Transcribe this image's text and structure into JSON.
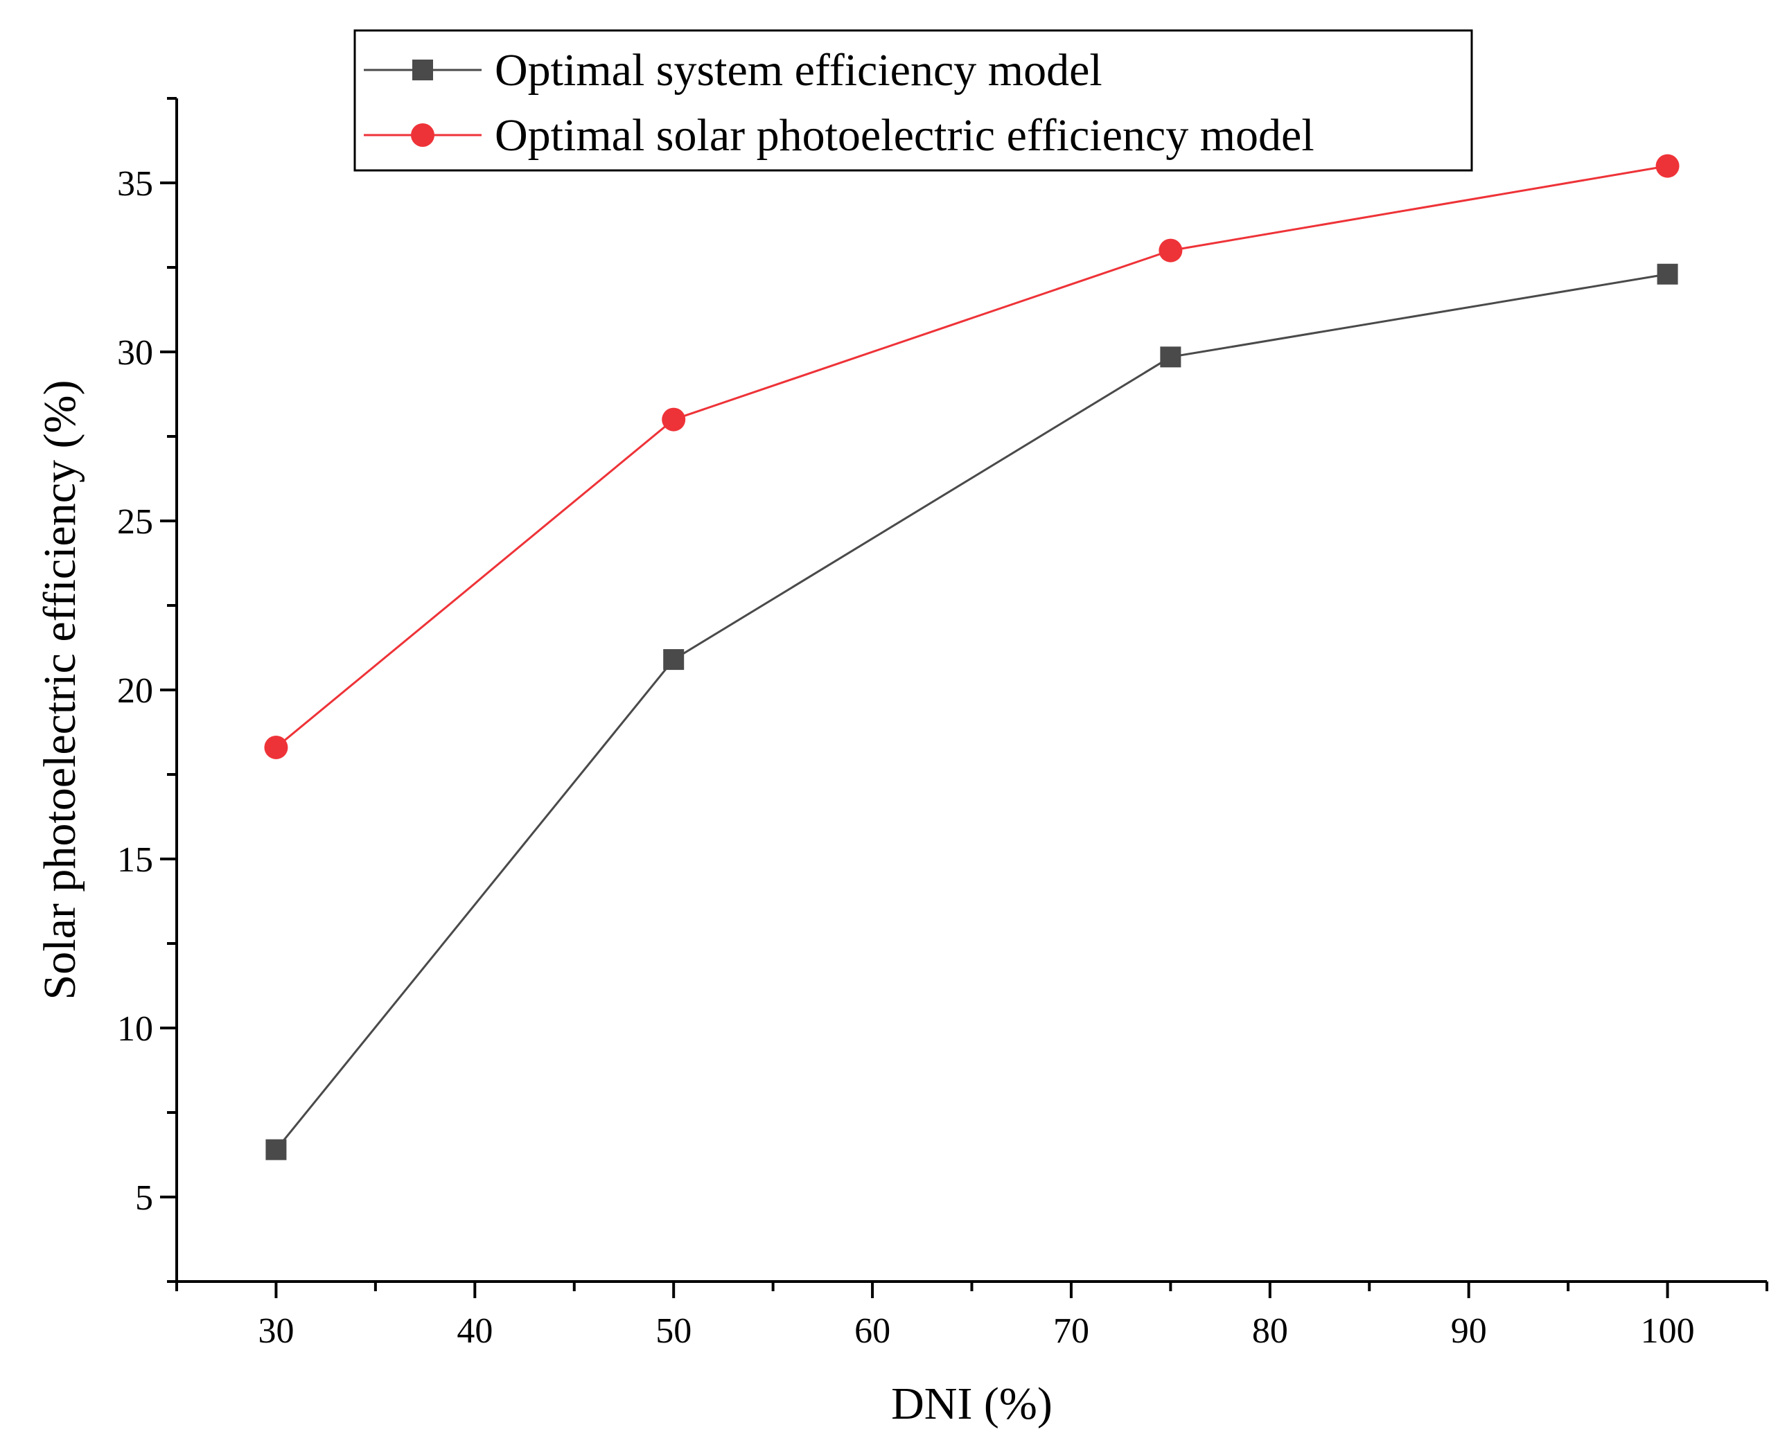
{
  "chart_data": {
    "type": "line",
    "title": "",
    "xlabel": "DNI (%)",
    "ylabel": "Solar photoelectric efficiency (%)",
    "xlim": [
      25,
      105
    ],
    "ylim": [
      2.5,
      37.5
    ],
    "xticks": [
      30,
      40,
      50,
      60,
      70,
      80,
      90,
      100
    ],
    "yticks": [
      5,
      10,
      15,
      20,
      25,
      30,
      35
    ],
    "x_tick_labels": [
      "30",
      "40",
      "50",
      "60",
      "70",
      "80",
      "90",
      "100"
    ],
    "y_tick_labels": [
      "5",
      "10",
      "15",
      "20",
      "25",
      "30",
      "35"
    ],
    "legend_position": "top",
    "series": [
      {
        "name": "Optimal system efficiency model",
        "color": "#4a4a4a",
        "marker": "square",
        "x": [
          30,
          50,
          75,
          100
        ],
        "y": [
          6.4,
          20.9,
          29.85,
          32.3
        ]
      },
      {
        "name": "Optimal solar photoelectric efficiency model",
        "color": "#ee3338",
        "marker": "circle",
        "x": [
          30,
          50,
          75,
          100
        ],
        "y": [
          18.3,
          28.0,
          33.0,
          35.5
        ]
      }
    ]
  }
}
